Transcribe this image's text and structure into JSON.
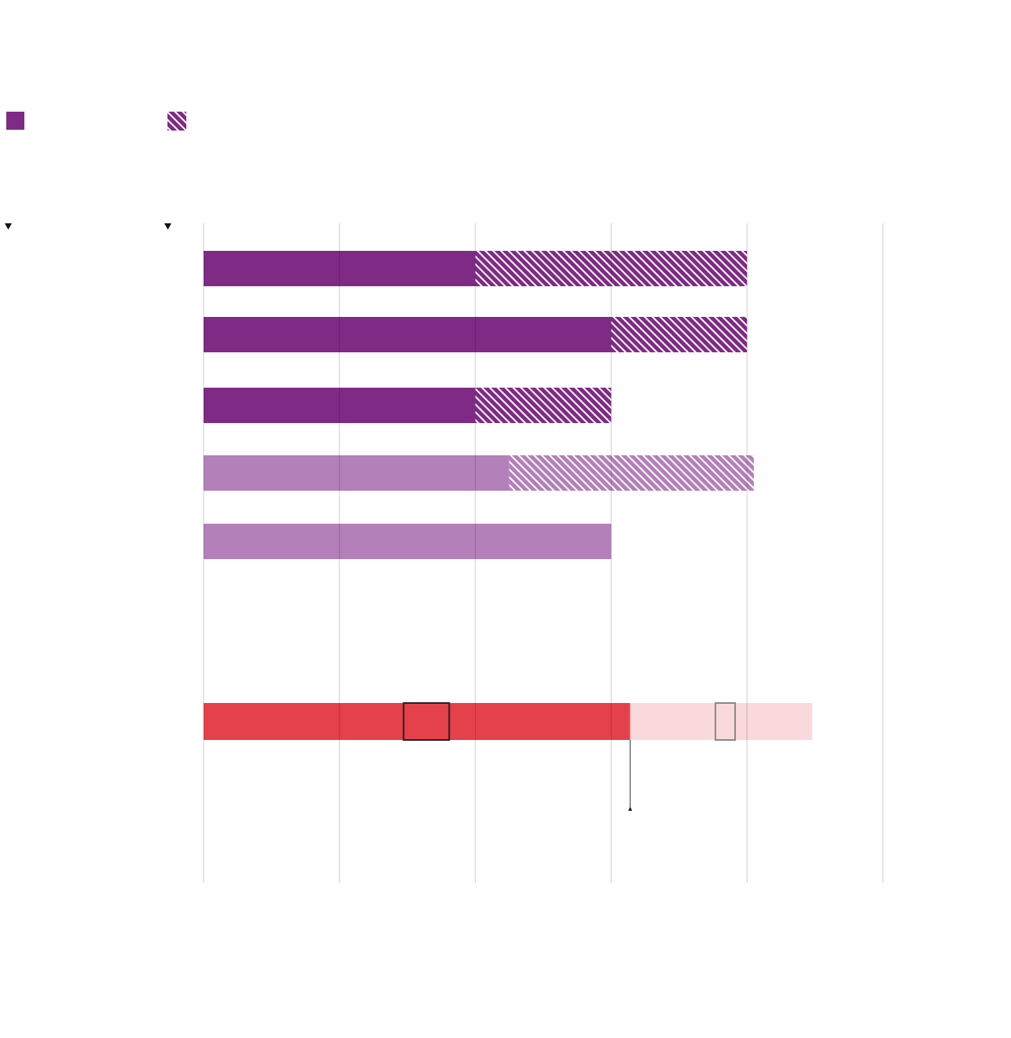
{
  "chart_data": [
    {
      "type": "bar",
      "orientation": "horizontal",
      "categories": [
        null,
        null,
        null,
        null,
        null
      ],
      "xlim": [
        0,
        5
      ],
      "xticks": [
        0,
        1,
        2,
        3,
        4,
        5
      ],
      "grid": true,
      "series": [
        {
          "pattern": "solid",
          "colors": [
            "#7f2b85",
            "#7f2b85",
            "#7f2b85",
            "#b380b9",
            "#b380b9"
          ],
          "values": [
            2,
            3,
            2,
            2.25,
            3
          ]
        },
        {
          "pattern": "hatched",
          "colors": [
            "#7f2b85",
            "#7f2b85",
            "#7f2b85",
            "#b380b9",
            "#b380b9"
          ],
          "values": [
            2,
            1,
            1,
            1.8,
            null
          ]
        }
      ]
    },
    {
      "type": "bar",
      "orientation": "horizontal",
      "categories": [
        null
      ],
      "xlim": [
        0,
        5
      ],
      "series": [
        {
          "pattern": "solid",
          "colors": [
            "#e5414a"
          ],
          "values": [
            3.14
          ]
        },
        {
          "pattern": "solid",
          "colors": [
            "#f9d9db"
          ],
          "values": [
            1.34
          ]
        }
      ],
      "markers": [
        1.64,
        3.84
      ],
      "marker_colors": [
        "#222222",
        "#888888"
      ]
    }
  ]
}
